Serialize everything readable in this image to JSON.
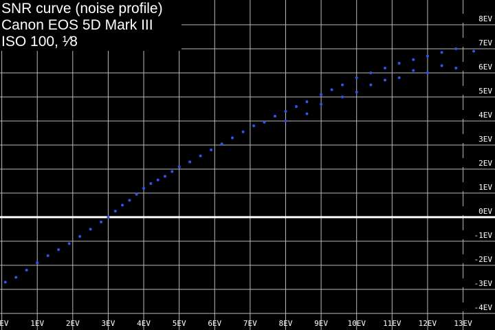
{
  "chart_data": {
    "type": "scatter",
    "title": [
      "SNR curve (noise profile)",
      "Canon EOS 5D Mark III",
      "ISO 100, ¹⁄8"
    ],
    "color": "#2f55f0",
    "grid": true,
    "xlim": [
      -0.05,
      13.9
    ],
    "ylim": [
      -4.69,
      9.03
    ],
    "xticks": [
      {
        "value": 0,
        "label": "0EV"
      },
      {
        "value": 1,
        "label": "1EV"
      },
      {
        "value": 2,
        "label": "2EV"
      },
      {
        "value": 3,
        "label": "3EV"
      },
      {
        "value": 4,
        "label": "4EV"
      },
      {
        "value": 5,
        "label": "5EV"
      },
      {
        "value": 6,
        "label": "6EV"
      },
      {
        "value": 7,
        "label": "7EV"
      },
      {
        "value": 8,
        "label": "8EV"
      },
      {
        "value": 9,
        "label": "9EV"
      },
      {
        "value": 10,
        "label": "10EV"
      },
      {
        "value": 11,
        "label": "11EV"
      },
      {
        "value": 12,
        "label": "12EV"
      },
      {
        "value": 13,
        "label": "13EV"
      }
    ],
    "yticks": [
      {
        "value": 8,
        "label": "8EV"
      },
      {
        "value": 7,
        "label": "7EV"
      },
      {
        "value": 6,
        "label": "6EV"
      },
      {
        "value": 5,
        "label": "5EV"
      },
      {
        "value": 4,
        "label": "4EV"
      },
      {
        "value": 3,
        "label": "3EV"
      },
      {
        "value": 2,
        "label": "2EV"
      },
      {
        "value": 1,
        "label": "1EV"
      },
      {
        "value": 0,
        "label": "0EV"
      },
      {
        "value": -1,
        "label": "-1EV"
      },
      {
        "value": -2,
        "label": "-2EV"
      },
      {
        "value": -3,
        "label": "-3EV"
      },
      {
        "value": -4,
        "label": "-4EV"
      }
    ],
    "x": [
      0.1,
      0.4,
      0.7,
      1.0,
      1.3,
      1.6,
      1.9,
      2.2,
      2.5,
      2.8,
      3.0,
      3.2,
      3.4,
      3.6,
      3.8,
      4.0,
      4.2,
      4.4,
      4.6,
      4.8,
      5.0,
      5.3,
      5.6,
      5.9,
      6.2,
      6.5,
      6.8,
      7.1,
      7.4,
      7.7,
      8.0,
      8.0,
      8.3,
      8.6,
      8.6,
      9.0,
      9.0,
      9.3,
      9.6,
      9.6,
      10.0,
      10.0,
      10.4,
      10.4,
      10.8,
      10.8,
      11.2,
      11.2,
      11.6,
      11.6,
      12.0,
      12.0,
      12.4,
      12.4,
      12.8,
      12.8,
      13.1,
      13.1,
      13.3,
      13.3
    ],
    "values": [
      -2.7,
      -2.5,
      -2.2,
      -1.9,
      -1.6,
      -1.35,
      -1.1,
      -0.8,
      -0.5,
      -0.2,
      0.0,
      0.25,
      0.5,
      0.7,
      0.95,
      1.2,
      1.4,
      1.55,
      1.7,
      1.9,
      2.1,
      2.3,
      2.55,
      2.8,
      3.05,
      3.3,
      3.55,
      3.8,
      3.95,
      4.2,
      4.4,
      4.0,
      4.6,
      4.8,
      4.3,
      5.1,
      4.7,
      5.3,
      5.5,
      5.0,
      5.8,
      5.2,
      6.0,
      5.5,
      6.2,
      5.7,
      6.4,
      5.8,
      6.55,
      6.1,
      6.7,
      6.0,
      6.85,
      6.3,
      7.0,
      6.2,
      7.15,
      6.4,
      7.3,
      6.9
    ]
  }
}
